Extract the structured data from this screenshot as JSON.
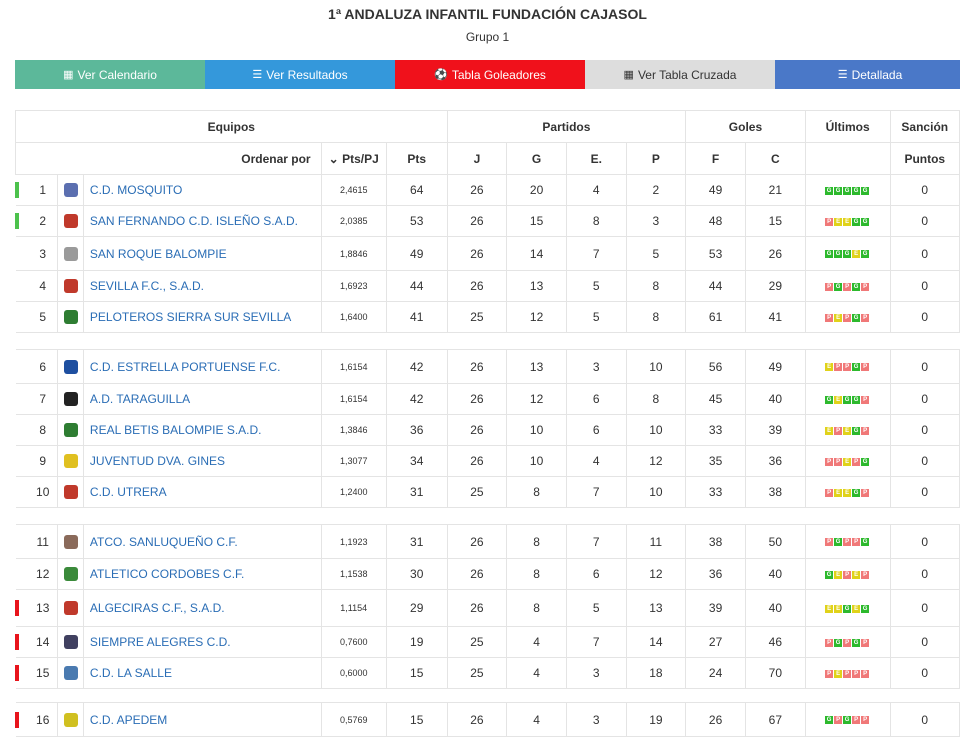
{
  "header": {
    "title": "1ª ANDALUZA INFANTIL FUNDACIÓN CAJASOL",
    "subtitle": "Grupo 1"
  },
  "nav": [
    {
      "icon": "calendar-icon",
      "label": "Ver Calendario"
    },
    {
      "icon": "list-icon",
      "label": "Ver Resultados"
    },
    {
      "icon": "soccer-ball-icon",
      "label": "Tabla Goleadores"
    },
    {
      "icon": "grid-icon",
      "label": "Ver Tabla Cruzada"
    },
    {
      "icon": "detail-list-icon",
      "label": "Detallada"
    }
  ],
  "table": {
    "group_headers": {
      "equipos": "Equipos",
      "partidos": "Partidos",
      "goles": "Goles",
      "ultimos": "Últimos",
      "sancion": "Sanción"
    },
    "sub_headers": {
      "ordenar": "Ordenar por",
      "ptspj": "Pts/PJ",
      "pts": "Pts",
      "j": "J",
      "g": "G",
      "e": "E.",
      "p": "P",
      "f": "F",
      "c": "C",
      "puntos": "Puntos"
    },
    "rows": [
      {
        "pos": "1",
        "team": "C.D. MOSQUITO",
        "ratio": "2,4615",
        "pts": "64",
        "j": "26",
        "g": "20",
        "e": "4",
        "p": "2",
        "f": "49",
        "c": "21",
        "form": [
          "G",
          "G",
          "G",
          "G",
          "G"
        ],
        "sancion": "0",
        "mark": "g"
      },
      {
        "pos": "2",
        "team": "SAN FERNANDO C.D. ISLEÑO S.A.D.",
        "ratio": "2,0385",
        "pts": "53",
        "j": "26",
        "g": "15",
        "e": "8",
        "p": "3",
        "f": "48",
        "c": "15",
        "form": [
          "P",
          "E",
          "E",
          "G",
          "G"
        ],
        "sancion": "0",
        "mark": "g"
      },
      {
        "pos": "3",
        "team": "SAN ROQUE BALOMPIE",
        "ratio": "1,8846",
        "pts": "49",
        "j": "26",
        "g": "14",
        "e": "7",
        "p": "5",
        "f": "53",
        "c": "26",
        "form": [
          "G",
          "G",
          "G",
          "E",
          "G"
        ],
        "sancion": "0",
        "mark": ""
      },
      {
        "pos": "4",
        "team": "SEVILLA F.C., S.A.D.",
        "ratio": "1,6923",
        "pts": "44",
        "j": "26",
        "g": "13",
        "e": "5",
        "p": "8",
        "f": "44",
        "c": "29",
        "form": [
          "P",
          "G",
          "P",
          "G",
          "P"
        ],
        "sancion": "0",
        "mark": ""
      },
      {
        "pos": "5",
        "team": "PELOTEROS SIERRA SUR SEVILLA",
        "ratio": "1,6400",
        "pts": "41",
        "j": "25",
        "g": "12",
        "e": "5",
        "p": "8",
        "f": "61",
        "c": "41",
        "form": [
          "P",
          "E",
          "P",
          "G",
          "P"
        ],
        "sancion": "0",
        "mark": ""
      },
      {
        "pos": "6",
        "team": "C.D. ESTRELLA PORTUENSE F.C.",
        "ratio": "1,6154",
        "pts": "42",
        "j": "26",
        "g": "13",
        "e": "3",
        "p": "10",
        "f": "56",
        "c": "49",
        "form": [
          "E",
          "P",
          "P",
          "G",
          "P"
        ],
        "sancion": "0",
        "mark": ""
      },
      {
        "pos": "7",
        "team": "A.D. TARAGUILLA",
        "ratio": "1,6154",
        "pts": "42",
        "j": "26",
        "g": "12",
        "e": "6",
        "p": "8",
        "f": "45",
        "c": "40",
        "form": [
          "G",
          "E",
          "G",
          "G",
          "P"
        ],
        "sancion": "0",
        "mark": ""
      },
      {
        "pos": "8",
        "team": "REAL BETIS BALOMPIE S.A.D.",
        "ratio": "1,3846",
        "pts": "36",
        "j": "26",
        "g": "10",
        "e": "6",
        "p": "10",
        "f": "33",
        "c": "39",
        "form": [
          "E",
          "P",
          "E",
          "G",
          "P"
        ],
        "sancion": "0",
        "mark": ""
      },
      {
        "pos": "9",
        "team": "JUVENTUD DVA. GINES",
        "ratio": "1,3077",
        "pts": "34",
        "j": "26",
        "g": "10",
        "e": "4",
        "p": "12",
        "f": "35",
        "c": "36",
        "form": [
          "P",
          "P",
          "E",
          "P",
          "G"
        ],
        "sancion": "0",
        "mark": ""
      },
      {
        "pos": "10",
        "team": "C.D. UTRERA",
        "ratio": "1,2400",
        "pts": "31",
        "j": "25",
        "g": "8",
        "e": "7",
        "p": "10",
        "f": "33",
        "c": "38",
        "form": [
          "P",
          "E",
          "E",
          "G",
          "P"
        ],
        "sancion": "0",
        "mark": ""
      },
      {
        "pos": "11",
        "team": "ATCO. SANLUQUEÑO C.F.",
        "ratio": "1,1923",
        "pts": "31",
        "j": "26",
        "g": "8",
        "e": "7",
        "p": "11",
        "f": "38",
        "c": "50",
        "form": [
          "P",
          "G",
          "P",
          "P",
          "G"
        ],
        "sancion": "0",
        "mark": ""
      },
      {
        "pos": "12",
        "team": "ATLETICO CORDOBES C.F.",
        "ratio": "1,1538",
        "pts": "30",
        "j": "26",
        "g": "8",
        "e": "6",
        "p": "12",
        "f": "36",
        "c": "40",
        "form": [
          "G",
          "E",
          "P",
          "E",
          "P"
        ],
        "sancion": "0",
        "mark": ""
      },
      {
        "pos": "13",
        "team": "ALGECIRAS C.F., S.A.D.",
        "ratio": "1,1154",
        "pts": "29",
        "j": "26",
        "g": "8",
        "e": "5",
        "p": "13",
        "f": "39",
        "c": "40",
        "form": [
          "E",
          "E",
          "G",
          "E",
          "G"
        ],
        "sancion": "0",
        "mark": "r"
      },
      {
        "pos": "14",
        "team": "SIEMPRE ALEGRES C.D.",
        "ratio": "0,7600",
        "pts": "19",
        "j": "25",
        "g": "4",
        "e": "7",
        "p": "14",
        "f": "27",
        "c": "46",
        "form": [
          "P",
          "G",
          "P",
          "G",
          "P"
        ],
        "sancion": "0",
        "mark": "r"
      },
      {
        "pos": "15",
        "team": "C.D. LA SALLE",
        "ratio": "0,6000",
        "pts": "15",
        "j": "25",
        "g": "4",
        "e": "3",
        "p": "18",
        "f": "24",
        "c": "70",
        "form": [
          "P",
          "E",
          "P",
          "P",
          "P"
        ],
        "sancion": "0",
        "mark": "r"
      },
      {
        "pos": "16",
        "team": "C.D. APEDEM",
        "ratio": "0,5769",
        "pts": "15",
        "j": "26",
        "g": "4",
        "e": "3",
        "p": "19",
        "f": "26",
        "c": "67",
        "form": [
          "G",
          "P",
          "G",
          "P",
          "P"
        ],
        "sancion": "0",
        "mark": "r"
      }
    ],
    "logo_colors": [
      "#5b6fb0",
      "#c0392b",
      "#9a9a9a",
      "#c0392b",
      "#2e7d32",
      "#1e4fa0",
      "#222222",
      "#2e7d32",
      "#e0c020",
      "#c0392b",
      "#8a6a5a",
      "#3a8a3a",
      "#c0392b",
      "#404060",
      "#4a7ab0",
      "#d0c020"
    ]
  }
}
